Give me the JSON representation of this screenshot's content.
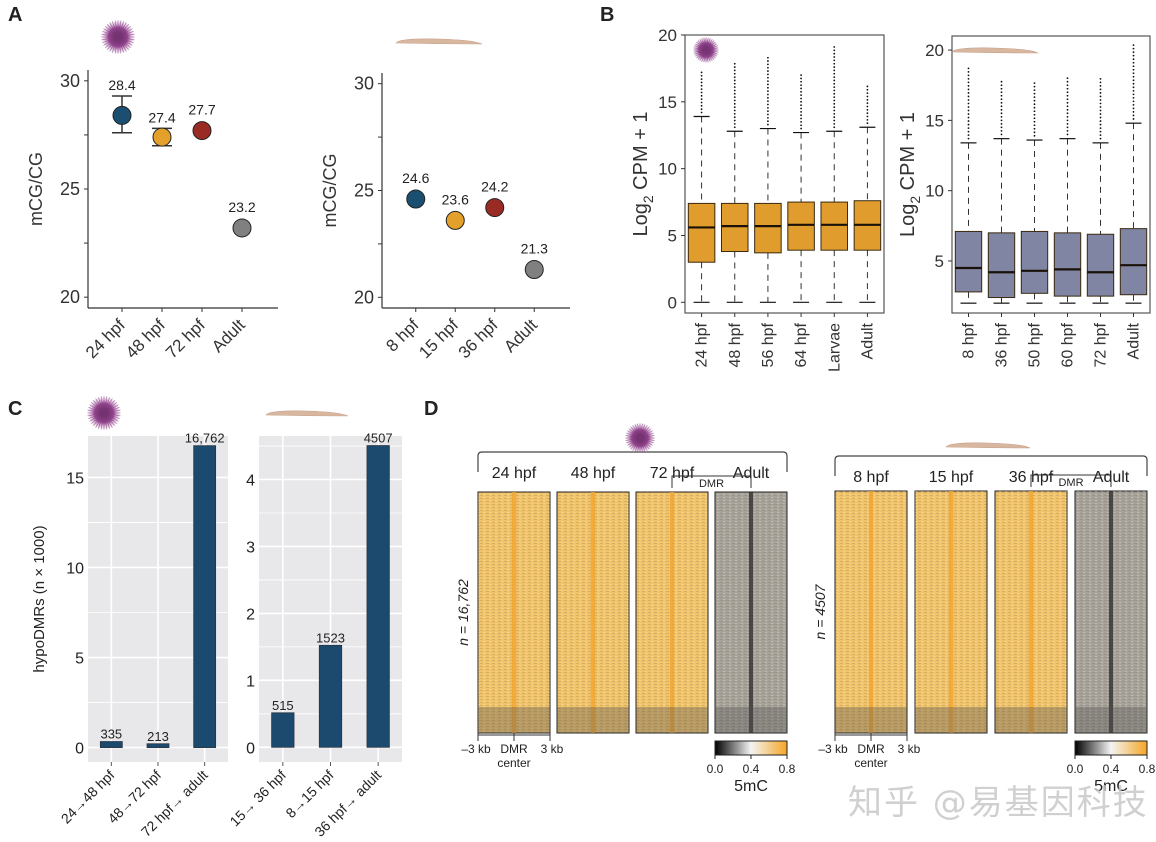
{
  "panels": {
    "A": "A",
    "B": "B",
    "C": "C",
    "D": "D"
  },
  "watermark": "知乎 @易基因科技",
  "colors": {
    "blue": "#1b4f72",
    "orange": "#e3a02a",
    "red": "#9a2a24",
    "grey": "#808080",
    "box_orange": "#e09c2c",
    "box_purple": "#8085a3",
    "bar_blue": "#1b4a6e",
    "panel_bg": "#e8e8eb",
    "urchin": "#8a3e86",
    "larva": "#d8b7a0"
  },
  "chart_data": [
    {
      "id": "A-urchin",
      "type": "scatter",
      "organism_icon": "sea-urchin-icon",
      "title": "",
      "xlabel": "",
      "ylabel": "mCG/CG",
      "ylim": [
        19.5,
        30.5
      ],
      "yticks": [
        20,
        25,
        30
      ],
      "categories": [
        "24 hpf",
        "48 hpf",
        "72 hpf",
        "Adult"
      ],
      "values": [
        28.4,
        27.4,
        27.7,
        23.2
      ],
      "labels": [
        "28.4",
        "27.4",
        "27.7",
        "23.2"
      ],
      "error": [
        [
          27.6,
          29.3
        ],
        [
          27.0,
          27.8
        ],
        null,
        null
      ],
      "point_colors": [
        "blue",
        "orange",
        "red",
        "grey"
      ]
    },
    {
      "id": "A-amphioxus",
      "type": "scatter",
      "organism_icon": "amphioxus-icon",
      "xlabel": "",
      "ylabel": "mCG/CG",
      "ylim": [
        19.5,
        30.5
      ],
      "yticks": [
        20,
        25,
        30
      ],
      "categories": [
        "8 hpf",
        "15 hpf",
        "36 hpf",
        "Adult"
      ],
      "values": [
        24.6,
        23.6,
        24.2,
        21.3
      ],
      "labels": [
        "24.6",
        "23.6",
        "24.2",
        "21.3"
      ],
      "error": [
        null,
        null,
        null,
        null
      ],
      "point_colors": [
        "blue",
        "orange",
        "red",
        "grey"
      ]
    },
    {
      "id": "B-urchin",
      "type": "box",
      "organism_icon": "sea-urchin-icon",
      "ylabel_main": "Log",
      "ylabel_sub": "2",
      "ylabel_rest": " CPM + 1",
      "ylim": [
        -0.8,
        20
      ],
      "yticks": [
        0,
        5,
        10,
        15,
        20
      ],
      "categories": [
        "24 hpf",
        "48 hpf",
        "56 hpf",
        "64 hpf",
        "Larvae",
        "Adult"
      ],
      "series": [
        {
          "name": "24 hpf",
          "min": 0,
          "q1": 3.0,
          "median": 5.6,
          "q3": 7.4,
          "max": 13.9,
          "outlier_max": 17.3
        },
        {
          "name": "48 hpf",
          "min": 0,
          "q1": 3.8,
          "median": 5.7,
          "q3": 7.4,
          "max": 12.8,
          "outlier_max": 17.9
        },
        {
          "name": "56 hpf",
          "min": 0,
          "q1": 3.7,
          "median": 5.7,
          "q3": 7.4,
          "max": 13.0,
          "outlier_max": 18.4
        },
        {
          "name": "64 hpf",
          "min": 0,
          "q1": 3.9,
          "median": 5.8,
          "q3": 7.5,
          "max": 12.7,
          "outlier_max": 17.0
        },
        {
          "name": "Larvae",
          "min": 0,
          "q1": 3.9,
          "median": 5.8,
          "q3": 7.5,
          "max": 12.8,
          "outlier_max": 19.3
        },
        {
          "name": "Adult",
          "min": 0,
          "q1": 3.9,
          "median": 5.8,
          "q3": 7.6,
          "max": 13.1,
          "outlier_max": 16.2
        }
      ],
      "fill": "box_orange"
    },
    {
      "id": "B-amphioxus",
      "type": "box",
      "organism_icon": "amphioxus-icon",
      "ylabel_main": "Log",
      "ylabel_sub": "2",
      "ylabel_rest": " CPM + 1",
      "ylim": [
        1.3,
        21
      ],
      "yticks": [
        5,
        10,
        15,
        20
      ],
      "categories": [
        "8 hpf",
        "36 hpf",
        "50 hpf",
        "60 hpf",
        "72 hpf",
        "Adult"
      ],
      "series": [
        {
          "name": "8 hpf",
          "min": 2.0,
          "q1": 2.8,
          "median": 4.5,
          "q3": 7.1,
          "max": 13.4,
          "outlier_max": 18.9
        },
        {
          "name": "36 hpf",
          "min": 2.0,
          "q1": 2.4,
          "median": 4.2,
          "q3": 7.0,
          "max": 13.7,
          "outlier_max": 17.8
        },
        {
          "name": "50 hpf",
          "min": 2.0,
          "q1": 2.7,
          "median": 4.3,
          "q3": 7.1,
          "max": 13.6,
          "outlier_max": 17.7
        },
        {
          "name": "60 hpf",
          "min": 2.0,
          "q1": 2.5,
          "median": 4.4,
          "q3": 7.0,
          "max": 13.7,
          "outlier_max": 18.1
        },
        {
          "name": "72 hpf",
          "min": 2.0,
          "q1": 2.5,
          "median": 4.2,
          "q3": 6.9,
          "max": 13.4,
          "outlier_max": 18.0
        },
        {
          "name": "Adult",
          "min": 2.0,
          "q1": 2.6,
          "median": 4.7,
          "q3": 7.3,
          "max": 14.8,
          "outlier_max": 20.5
        }
      ],
      "fill": "box_purple"
    },
    {
      "id": "C-urchin",
      "type": "bar",
      "organism_icon": "sea-urchin-icon",
      "ylabel": "hypoDMRs (n × 1000)",
      "ylim": [
        -0.8,
        17.3
      ],
      "yticks": [
        0,
        5,
        10,
        15
      ],
      "categories": [
        "24→48 hpf",
        "48→72 hpf",
        "72 hpf→ adult"
      ],
      "values": [
        0.335,
        0.213,
        16.762
      ],
      "labels": [
        "335",
        "213",
        "16,762"
      ]
    },
    {
      "id": "C-amphioxus",
      "type": "bar",
      "organism_icon": "amphioxus-icon",
      "ylabel": "",
      "ylim": [
        -0.22,
        4.65
      ],
      "yticks": [
        0,
        1,
        2,
        3,
        4
      ],
      "categories": [
        "15→ 36 hpf",
        "8→15 hpf",
        "36 hpf→ adult"
      ],
      "values": [
        0.515,
        1.523,
        4.507
      ],
      "labels": [
        "515",
        "1523",
        "4507"
      ]
    },
    {
      "id": "D-urchin",
      "type": "heatmap",
      "organism_icon": "sea-urchin-icon",
      "columns": [
        "24 hpf",
        "48 hpf",
        "72 hpf",
        "Adult"
      ],
      "mean_5mC": [
        0.6,
        0.6,
        0.6,
        0.35
      ],
      "dmr_label": "DMR",
      "row_label": "n = 16,762",
      "x_labels": [
        "–3 kb",
        "DMR",
        "center",
        "3 kb"
      ],
      "colorbar": {
        "ticks": [
          "0.0",
          "0.4",
          "0.8"
        ],
        "title": "5mC",
        "range": [
          0,
          0.8
        ]
      }
    },
    {
      "id": "D-amphioxus",
      "type": "heatmap",
      "organism_icon": "amphioxus-icon",
      "columns": [
        "8 hpf",
        "15 hpf",
        "36 hpf",
        "Adult"
      ],
      "mean_5mC": [
        0.7,
        0.7,
        0.7,
        0.4
      ],
      "dmr_label": "DMR",
      "row_label": "n = 4507",
      "x_labels": [
        "–3 kb",
        "DMR",
        "center",
        "3 kb"
      ],
      "colorbar": {
        "ticks": [
          "0.0",
          "0.4",
          "0.8"
        ],
        "title": "5mC",
        "range": [
          0,
          0.8
        ]
      }
    }
  ]
}
